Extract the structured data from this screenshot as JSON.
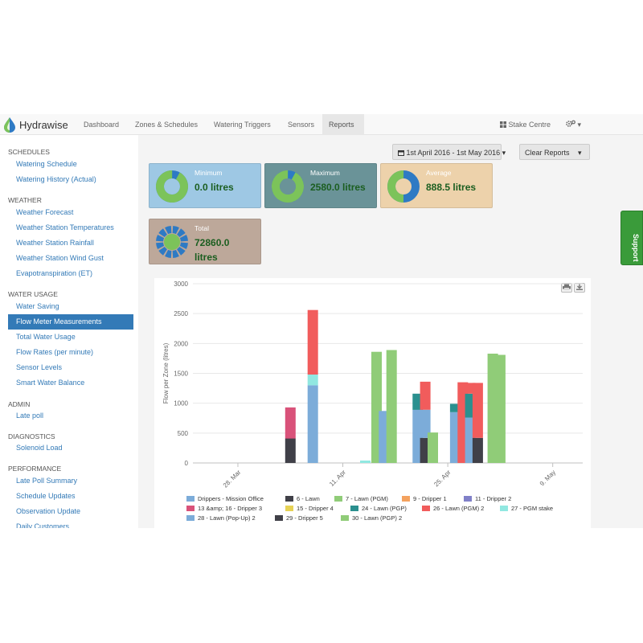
{
  "brand": {
    "name": "Hydrawise"
  },
  "nav": {
    "items": [
      "Dashboard",
      "Zones & Schedules",
      "Watering Triggers",
      "Sensors",
      "Reports"
    ],
    "active": "Reports",
    "stake_centre": "Stake Centre",
    "gear_caret": "▾"
  },
  "sidebar": {
    "sections": [
      {
        "title": "SCHEDULES",
        "items": [
          "Watering Schedule",
          "Watering History (Actual)"
        ]
      },
      {
        "title": "WEATHER",
        "items": [
          "Weather Forecast",
          "Weather Station Temperatures",
          "Weather Station Rainfall",
          "Weather Station Wind Gust",
          "Evapotranspiration (ET)"
        ]
      },
      {
        "title": "WATER USAGE",
        "items": [
          "Water Saving",
          "Flow Meter Measurements",
          "Total Water Usage",
          "Flow Rates (per minute)",
          "Sensor Levels",
          "Smart Water Balance"
        ]
      },
      {
        "title": "ADMIN",
        "items": [
          "Late poll"
        ]
      },
      {
        "title": "DIAGNOSTICS",
        "items": [
          "Solenoid Load"
        ]
      },
      {
        "title": "PERFORMANCE",
        "items": [
          "Late Poll Summary",
          "Schedule Updates",
          "Observation Update",
          "Daily Customers"
        ]
      }
    ],
    "active_item": "Flow Meter Measurements"
  },
  "toolbar": {
    "date_range": "1st April 2016 - 1st May 2016",
    "clear_reports": "Clear Reports"
  },
  "stats": {
    "minimum": {
      "label": "Minimum",
      "value": "0.0 litres",
      "bg": "#9ec8e4",
      "ring_fraction": 0.08
    },
    "maximum": {
      "label": "Maximum",
      "value": "2580.0 litres",
      "bg": "#6a9398",
      "ring_fraction": 0.08
    },
    "average": {
      "label": "Average",
      "value": "888.5 litres",
      "bg": "#edd2ab",
      "ring_fraction": 0.5
    },
    "total": {
      "label": "Total",
      "value_line1": "72860.0",
      "value_line2": "litres",
      "bg": "#bda89a"
    }
  },
  "support": {
    "label": "Support"
  },
  "colors": {
    "accent": "#337ab7",
    "ring_green": "#7cc35a",
    "ring_blue": "#2e7ac4"
  },
  "chart_data": {
    "type": "bar",
    "ylabel": "Flow per Zone (litres)",
    "ylim": [
      0,
      3000
    ],
    "yticks": [
      "0",
      "500",
      "1000",
      "1500",
      "2000",
      "2500",
      "3000"
    ],
    "xticks": [
      "28. Mar",
      "11. Apr",
      "25. Apr",
      "9. May"
    ],
    "xticks_day": [
      0,
      14,
      28,
      42
    ],
    "xlim_day": [
      -6,
      46
    ],
    "series": [
      {
        "name": "Drippers - Mission Office",
        "color": "#7cacd9"
      },
      {
        "name": "6 - Lawn",
        "color": "#404048"
      },
      {
        "name": "7 - Lawn (PGM)",
        "color": "#90cc78"
      },
      {
        "name": "9 - Dripper 1",
        "color": "#f4a25f"
      },
      {
        "name": "11 - Dripper 2",
        "color": "#8080c8"
      },
      {
        "name": "13 &amp; 16 - Dripper 3",
        "color": "#d9527a"
      },
      {
        "name": "15 - Dripper 4",
        "color": "#e6d255"
      },
      {
        "name": "24 - Lawn (PGP)",
        "color": "#2b908f"
      },
      {
        "name": "26 - Lawn (PGM) 2",
        "color": "#f15c5c"
      },
      {
        "name": "27 - PGM stake",
        "color": "#91e8e1"
      },
      {
        "name": "28 - Lawn (Pop-Up) 2",
        "color": "#7cacd9"
      },
      {
        "name": "29 - Dripper 5",
        "color": "#404048"
      },
      {
        "name": "30 - Lawn (PGP) 2",
        "color": "#90cc78"
      }
    ],
    "bars": [
      {
        "day": 7,
        "stack": [
          {
            "s": 11,
            "v": 410
          },
          {
            "s": 5,
            "v": 520
          }
        ]
      },
      {
        "day": 10,
        "stack": [
          {
            "s": 0,
            "v": 1300
          },
          {
            "s": 9,
            "v": 180
          },
          {
            "s": 8,
            "v": 1080
          }
        ]
      },
      {
        "day": 17,
        "stack": [
          {
            "s": 9,
            "v": 40
          }
        ]
      },
      {
        "day": 18.5,
        "stack": [
          {
            "s": 2,
            "v": 1860
          }
        ]
      },
      {
        "day": 19.5,
        "stack": [
          {
            "s": 0,
            "v": 870
          }
        ]
      },
      {
        "day": 20.5,
        "stack": [
          {
            "s": 2,
            "v": 1890
          }
        ]
      },
      {
        "day": 24,
        "stack": [
          {
            "s": 0,
            "v": 890
          },
          {
            "s": 7,
            "v": 270
          }
        ]
      },
      {
        "day": 25,
        "stack": [
          {
            "s": 11,
            "v": 420
          },
          {
            "s": 0,
            "v": 470
          },
          {
            "s": 8,
            "v": 470
          }
        ]
      },
      {
        "day": 26,
        "stack": [
          {
            "s": 12,
            "v": 510
          }
        ]
      },
      {
        "day": 29,
        "stack": [
          {
            "s": 0,
            "v": 850
          },
          {
            "s": 7,
            "v": 140
          }
        ]
      },
      {
        "day": 30,
        "stack": [
          {
            "s": 8,
            "v": 1350
          }
        ]
      },
      {
        "day": 31,
        "stack": [
          {
            "s": 0,
            "v": 760
          },
          {
            "s": 7,
            "v": 400
          },
          {
            "s": 8,
            "v": 180
          }
        ]
      },
      {
        "day": 32,
        "stack": [
          {
            "s": 11,
            "v": 420
          },
          {
            "s": 8,
            "v": 920
          }
        ]
      },
      {
        "day": 34,
        "stack": [
          {
            "s": 2,
            "v": 1830
          }
        ]
      },
      {
        "day": 35,
        "stack": [
          {
            "s": 2,
            "v": 1810
          }
        ]
      }
    ]
  }
}
